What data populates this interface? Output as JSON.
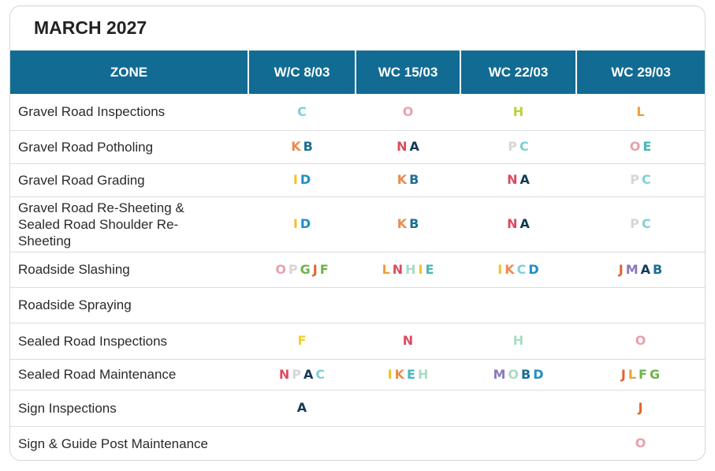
{
  "title": "MARCH 2027",
  "headers": [
    "ZONE",
    "W/C 8/03",
    "WC 15/03",
    "WC 22/03",
    "WC 29/03"
  ],
  "letter_colors": {
    "A": "#123a56",
    "B": "#1a6e93",
    "C": "#7fd0d4",
    "D": "#1e8fc6",
    "E": "#46b6b9",
    "F": "#f2d128",
    "G": "#6fb24d",
    "H": "#b6d336",
    "I": "#f5c02a",
    "J": "#e3642c",
    "K": "#ec8a4e",
    "L": "#eaa035",
    "M": "#8a78bb",
    "N": "#dd4b5f",
    "O": "#e7a1ad",
    "P": "#d6d6d6"
  },
  "letter_color_overrides": {
    "sealed_maint_wc15_H": "#a9dcc2",
    "slashing_wc15_H": "#a9dcc2",
    "slashing_wc15_I": "#f5c02a",
    "sealed_insp_wc22_H": "#a9dcc2",
    "slashing_wc8_G": "#6fb24d",
    "slashing_wc8_F": "#6fb24d",
    "sealed_maint_wc22_O": "#a9dcc2",
    "sealed_maint_wc29_F": "#6fb24d",
    "sealed_maint_wc29_G": "#6fb24d"
  },
  "rows": [
    {
      "zone": "Gravel Road Inspections",
      "cells": [
        "C",
        "O",
        "H",
        "L"
      ]
    },
    {
      "zone": "Gravel Road Potholing",
      "cells": [
        "K B",
        "N A",
        "P C",
        "O E"
      ]
    },
    {
      "zone": "Gravel Road Grading",
      "cells": [
        "I D",
        "K B",
        "N A",
        "P C"
      ]
    },
    {
      "zone": "Gravel Road Re-Sheeting & Sealed Road Shoulder Re-Sheeting",
      "cells": [
        "I D",
        "K B",
        "N A",
        "P C"
      ]
    },
    {
      "zone": "Roadside Slashing",
      "cells": [
        "O P G J F",
        "L N H I E",
        "I K C D",
        "J M A B"
      ]
    },
    {
      "zone": "Roadside Spraying",
      "cells": [
        "",
        "",
        "",
        ""
      ]
    },
    {
      "zone": "Sealed Road Inspections",
      "cells": [
        "F",
        "N",
        "H",
        "O"
      ]
    },
    {
      "zone": "Sealed Road Maintenance",
      "cells": [
        "N P A C",
        "I K E H",
        "M O B D",
        "J L F G"
      ]
    },
    {
      "zone": "Sign Inspections",
      "cells": [
        "A",
        "",
        "",
        "J"
      ]
    },
    {
      "zone": "Sign & Guide Post Maintenance",
      "cells": [
        "",
        "",
        "",
        "O"
      ]
    }
  ]
}
